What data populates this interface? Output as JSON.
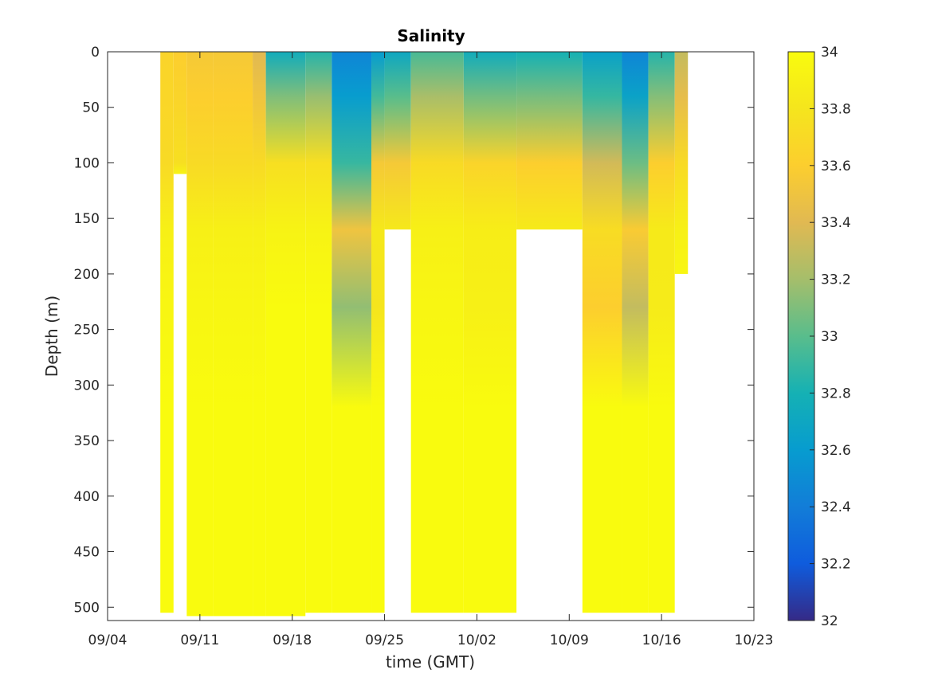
{
  "chart_data": {
    "type": "heatmap",
    "title": "Salinity",
    "xlabel": "time (GMT)",
    "ylabel": "Depth (m)",
    "x_axis": {
      "min": "09/04",
      "max": "10/23",
      "tick_labels": [
        "09/04",
        "09/11",
        "09/18",
        "09/25",
        "10/02",
        "10/09",
        "10/16",
        "10/23"
      ]
    },
    "y_axis": {
      "min": 0,
      "max": 512,
      "reversed": true,
      "tick_labels": [
        "0",
        "50",
        "100",
        "150",
        "200",
        "250",
        "300",
        "350",
        "400",
        "450",
        "500"
      ]
    },
    "colorbar": {
      "min": 32,
      "max": 34,
      "colormap": "parula",
      "tick_labels": [
        "32",
        "32.2",
        "32.4",
        "32.6",
        "32.8",
        "33",
        "33.2",
        "33.4",
        "33.6",
        "33.8",
        "34"
      ]
    },
    "data_columns": [
      {
        "start": "09/08",
        "end": "09/09",
        "max_depth": 505,
        "surface_salinity": 33.65,
        "s_depth100": 33.7
      },
      {
        "start": "09/09",
        "end": "09/10",
        "max_depth": 110,
        "surface_salinity": 33.6,
        "s_depth100": 33.75
      },
      {
        "start": "09/10",
        "end": "09/12",
        "max_depth": 508,
        "surface_salinity": 33.55,
        "s_depth100": 33.7
      },
      {
        "start": "09/12",
        "end": "09/15",
        "max_depth": 508,
        "surface_salinity": 33.55,
        "s_depth100": 33.7
      },
      {
        "start": "09/15",
        "end": "09/16",
        "max_depth": 508,
        "surface_salinity": 33.4,
        "s_depth100": 33.7
      },
      {
        "start": "09/16",
        "end": "09/19",
        "max_depth": 508,
        "surface_salinity": 32.75,
        "s_depth100": 33.75
      },
      {
        "start": "09/19",
        "end": "09/21",
        "max_depth": 505,
        "surface_salinity": 32.85,
        "s_depth100": 33.75
      },
      {
        "start": "09/21",
        "end": "09/24",
        "max_depth": 505,
        "surface_salinity": 32.45,
        "s_depth100": 32.9
      },
      {
        "start": "09/24",
        "end": "09/25",
        "max_depth": 505,
        "surface_salinity": 32.6,
        "s_depth100": 33.55
      },
      {
        "start": "09/25",
        "end": "09/27",
        "max_depth": 160,
        "surface_salinity": 32.7,
        "s_depth100": 33.55
      },
      {
        "start": "09/27",
        "end": "10/01",
        "max_depth": 505,
        "surface_salinity": 32.95,
        "s_depth100": 33.7
      },
      {
        "start": "10/01",
        "end": "10/05",
        "max_depth": 505,
        "surface_salinity": 32.75,
        "s_depth100": 33.65
      },
      {
        "start": "10/05",
        "end": "10/10",
        "max_depth": 160,
        "surface_salinity": 32.8,
        "s_depth100": 33.6
      },
      {
        "start": "10/10",
        "end": "10/13",
        "max_depth": 505,
        "surface_salinity": 32.65,
        "s_depth100": 33.35
      },
      {
        "start": "10/13",
        "end": "10/15",
        "max_depth": 505,
        "surface_salinity": 32.45,
        "s_depth100": 33.05
      },
      {
        "start": "10/15",
        "end": "10/17",
        "max_depth": 505,
        "surface_salinity": 32.85,
        "s_depth100": 33.6
      },
      {
        "start": "10/17",
        "end": "10/18",
        "max_depth": 200,
        "surface_salinity": 33.3,
        "s_depth100": 33.7
      }
    ],
    "deep_salinity": 34.0,
    "grid": false,
    "legend": "colorbar-right"
  }
}
